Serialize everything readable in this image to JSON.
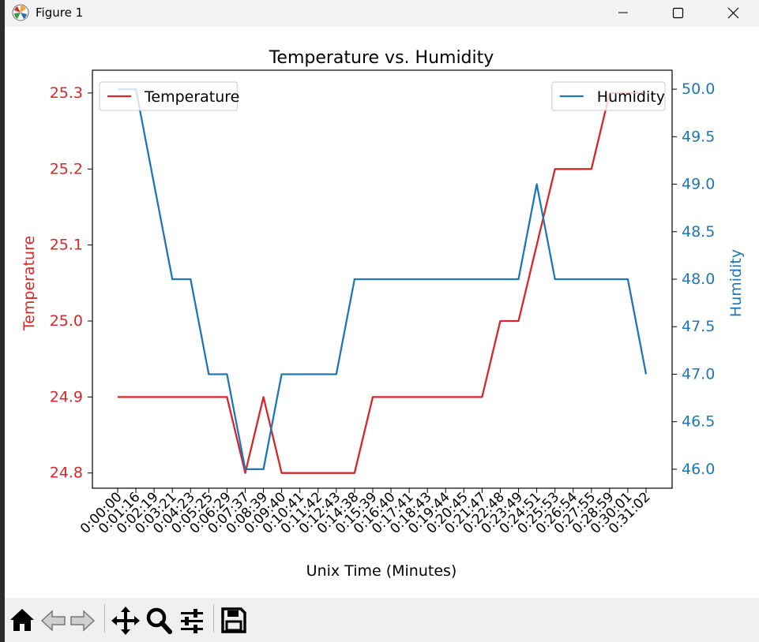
{
  "window": {
    "title": "Figure 1"
  },
  "toolbar": {
    "buttons": [
      {
        "name": "home-button",
        "icon": "home-icon"
      },
      {
        "name": "back-button",
        "icon": "arrow-left-icon"
      },
      {
        "name": "forward-button",
        "icon": "arrow-right-icon"
      },
      {
        "name": "pan-button",
        "icon": "move-icon"
      },
      {
        "name": "zoom-button",
        "icon": "magnifier-icon"
      },
      {
        "name": "configure-subplots-button",
        "icon": "sliders-icon"
      },
      {
        "name": "save-button",
        "icon": "floppy-icon"
      }
    ]
  },
  "chart_data": {
    "type": "line",
    "title": "Temperature vs. Humidity",
    "xlabel": "Unix Time (Minutes)",
    "categories": [
      "0:00:00",
      "0:01:16",
      "0:02:19",
      "0:03:21",
      "0:04:23",
      "0:05:25",
      "0:06:29",
      "0:07:37",
      "0:08:39",
      "0:09:40",
      "0:10:41",
      "0:11:42",
      "0:12:43",
      "0:14:38",
      "0:15:39",
      "0:16:40",
      "0:17:41",
      "0:18:43",
      "0:19:44",
      "0:20:45",
      "0:21:47",
      "0:22:48",
      "0:23:49",
      "0:24:51",
      "0:25:53",
      "0:26:54",
      "0:27:55",
      "0:28:59",
      "0:30:01",
      "0:31:02"
    ],
    "series": [
      {
        "name": "Temperature",
        "axis": "left",
        "color": "#d62728",
        "values": [
          24.9,
          24.9,
          24.9,
          24.9,
          24.9,
          24.9,
          24.9,
          24.8,
          24.9,
          24.8,
          24.8,
          24.8,
          24.8,
          24.8,
          24.9,
          24.9,
          24.9,
          24.9,
          24.9,
          24.9,
          24.9,
          25.0,
          25.0,
          25.1,
          25.2,
          25.2,
          25.2,
          25.3,
          25.3,
          25.3
        ]
      },
      {
        "name": "Humidity",
        "axis": "right",
        "color": "#1f77b4",
        "values": [
          50,
          50,
          49,
          48,
          48,
          47,
          47,
          46,
          46,
          47,
          47,
          47,
          47,
          48,
          48,
          48,
          48,
          48,
          48,
          48,
          48,
          48,
          48,
          49,
          48,
          48,
          48,
          48,
          48,
          47
        ]
      }
    ],
    "y_left": {
      "label": "Temperature",
      "color": "#d62728",
      "ylim": [
        24.78,
        25.33
      ],
      "ticks": [
        "24.8",
        "24.9",
        "25.0",
        "25.1",
        "25.2",
        "25.3"
      ]
    },
    "y_right": {
      "label": "Humidity",
      "color": "#1f77b4",
      "ylim": [
        45.8,
        50.2
      ],
      "ticks": [
        "46.0",
        "46.5",
        "47.0",
        "47.5",
        "48.0",
        "48.5",
        "49.0",
        "49.5",
        "50.0"
      ]
    },
    "legends": [
      {
        "entry": "Temperature",
        "color": "#d62728",
        "placement": "upper-left"
      },
      {
        "entry": "Humidity",
        "color": "#1f77b4",
        "placement": "upper-right"
      }
    ],
    "grid": false
  }
}
